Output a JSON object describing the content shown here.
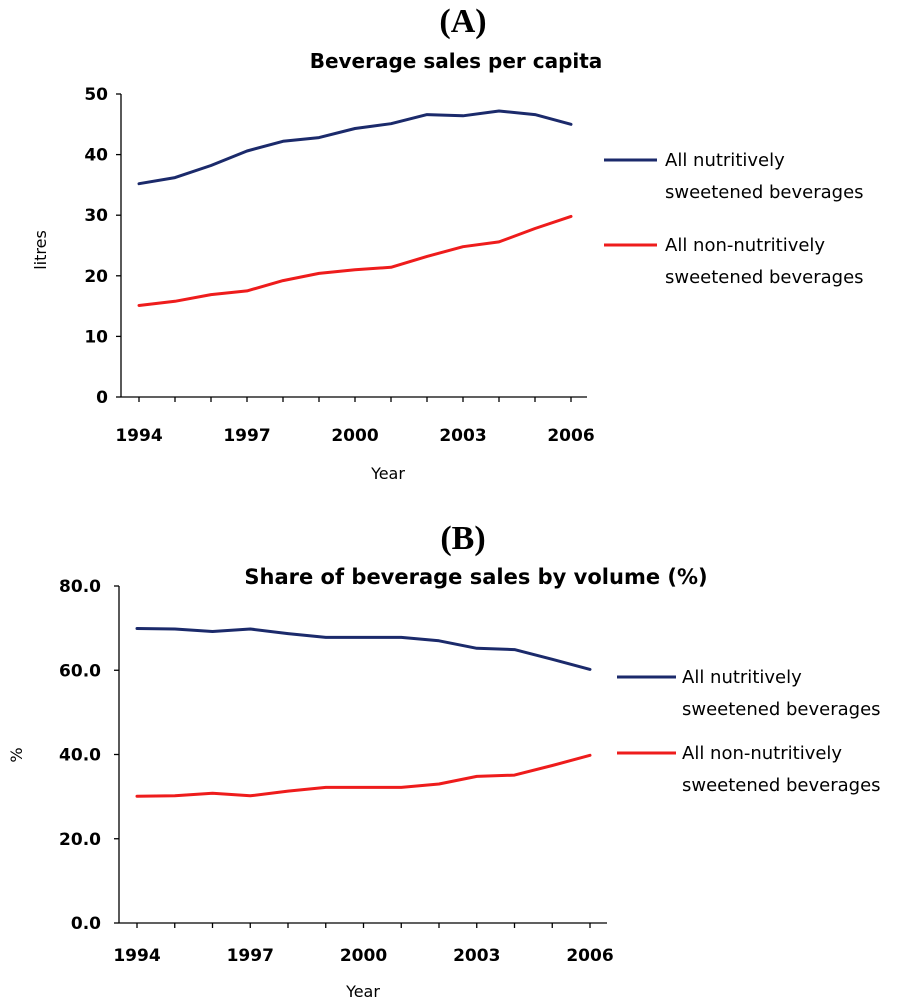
{
  "chart_data": [
    {
      "type": "line",
      "panel": "(A)",
      "title": "Beverage sales per capita",
      "xlabel": "Year",
      "ylabel": "litres",
      "x": [
        1994,
        1995,
        1996,
        1997,
        1998,
        1999,
        2000,
        2001,
        2002,
        2003,
        2004,
        2005,
        2006
      ],
      "xticks": [
        "1994",
        "1997",
        "2000",
        "2003",
        "2006"
      ],
      "yticks": [
        "0",
        "10",
        "20",
        "30",
        "40",
        "50"
      ],
      "ylim": [
        0,
        50
      ],
      "grid": false,
      "legend_position": "right",
      "series": [
        {
          "name": "All nutritively sweetened beverages",
          "legend_lines": [
            "All nutritively",
            "sweetened beverages"
          ],
          "color": "#1b2a6b",
          "values": [
            35.2,
            36.2,
            38.2,
            40.6,
            42.2,
            42.8,
            44.3,
            45.1,
            46.6,
            46.4,
            47.2,
            46.6,
            45.0
          ]
        },
        {
          "name": "All non-nutritively sweetened beverages",
          "legend_lines": [
            "All non-nutritively",
            "sweetened beverages"
          ],
          "color": "#ee1c1c",
          "values": [
            15.1,
            15.8,
            16.9,
            17.5,
            19.2,
            20.4,
            21.0,
            21.4,
            23.2,
            24.8,
            25.6,
            27.8,
            29.8
          ]
        }
      ]
    },
    {
      "type": "line",
      "panel": "(B)",
      "title": "Share of beverage sales by volume (%)",
      "xlabel": "Year",
      "ylabel": "%",
      "x": [
        1994,
        1995,
        1996,
        1997,
        1998,
        1999,
        2000,
        2001,
        2002,
        2003,
        2004,
        2005,
        2006
      ],
      "xticks": [
        "1994",
        "1997",
        "2000",
        "2003",
        "2006"
      ],
      "yticks": [
        "0.0",
        "20.0",
        "40.0",
        "60.0",
        "80.0"
      ],
      "ylim": [
        0,
        80
      ],
      "grid": false,
      "legend_position": "right",
      "series": [
        {
          "name": "All nutritively sweetened beverages",
          "legend_lines": [
            "All nutritively",
            "sweetened beverages"
          ],
          "color": "#1b2a6b",
          "values": [
            69.9,
            69.8,
            69.2,
            69.8,
            68.7,
            67.8,
            67.8,
            67.8,
            67.0,
            65.2,
            64.9,
            62.6,
            60.2
          ]
        },
        {
          "name": "All non-nutritively sweetened beverages",
          "legend_lines": [
            "All non-nutritively",
            "sweetened beverages"
          ],
          "color": "#ee1c1c",
          "values": [
            30.1,
            30.2,
            30.8,
            30.2,
            31.3,
            32.2,
            32.2,
            32.2,
            33.0,
            34.8,
            35.1,
            37.4,
            39.8
          ]
        }
      ]
    }
  ]
}
